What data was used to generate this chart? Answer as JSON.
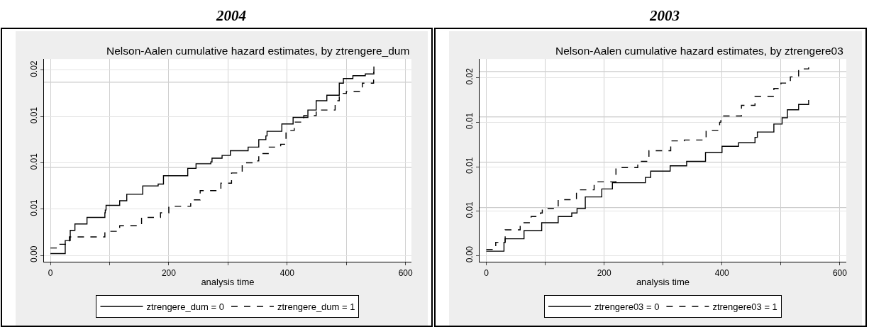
{
  "chart_data": [
    {
      "type": "step",
      "title": "2004",
      "subtitle": "Nelson-Aalen cumulative hazard estimates, by ztrengere_dum",
      "xlabel": "analysis time",
      "xlim": [
        -11,
        610
      ],
      "ylim": [
        -0.0007,
        0.0212
      ],
      "xticks": [
        0,
        {
          "value": 100,
          "label": null
        },
        200,
        {
          "value": 300,
          "label": null
        },
        400,
        {
          "value": 500,
          "label": null
        },
        600
      ],
      "yticks": [
        {
          "value": 0,
          "label": "0.00"
        },
        {
          "value": 0.005,
          "label": "0.01"
        },
        {
          "value": 0.01,
          "label": "0.01"
        },
        {
          "value": 0.015,
          "label": "0.01"
        },
        {
          "value": 0.02,
          "label": "0.02"
        }
      ],
      "grid": true,
      "legend": "bottom",
      "ref_lines": [
        {
          "axis": "y",
          "value": 0.0187,
          "label": null,
          "color": "#c0c0c0"
        },
        {
          "axis": "y",
          "value": 0.0095,
          "label": null,
          "color": "#c0c0c0"
        }
      ],
      "series": [
        {
          "name": "ztrengere_dum = 0",
          "color": "#000000",
          "line_style": "solid",
          "x": [
            0,
            25,
            33.5,
            41.4,
            53,
            61.8,
            92,
            92.7,
            94,
            117,
            129,
            146,
            156,
            182,
            191,
            209,
            232,
            246,
            271,
            273,
            290,
            304,
            334,
            352,
            364,
            366,
            387,
            391,
            410,
            435,
            449,
            467,
            488,
            495,
            511,
            532,
            546.5
          ],
          "values": [
            0.0002,
            0.0016,
            0.0027,
            0.0034,
            0.0034,
            0.0041,
            0.0046,
            0.0049,
            0.0054,
            0.0059,
            0.0066,
            0.0066,
            0.0075,
            0.0077,
            0.0086,
            0.0086,
            0.0094,
            0.0099,
            0.0101,
            0.0105,
            0.0108,
            0.0113,
            0.0117,
            0.0125,
            0.0129,
            0.0134,
            0.0134,
            0.0142,
            0.0149,
            0.0157,
            0.0167,
            0.0173,
            0.0186,
            0.0191,
            0.0194,
            0.0196,
            0.0204
          ]
        },
        {
          "name": "ztrengere_dum = 1",
          "color": "#000000",
          "line_style": "dashed",
          "x": [
            0,
            16,
            32,
            62,
            92,
            117,
            154,
            186,
            200,
            237,
            253,
            288,
            306,
            324,
            345,
            352,
            368,
            389,
            398,
            412,
            428,
            449,
            481,
            488,
            500,
            527,
            546
          ],
          "values": [
            0.0008,
            0.0012,
            0.002,
            0.002,
            0.0026,
            0.0032,
            0.0041,
            0.0046,
            0.0053,
            0.006,
            0.007,
            0.0078,
            0.0089,
            0.01,
            0.0102,
            0.011,
            0.0117,
            0.012,
            0.0135,
            0.0144,
            0.0151,
            0.0157,
            0.0167,
            0.0175,
            0.0177,
            0.0186,
            0.0198
          ]
        }
      ]
    },
    {
      "type": "step",
      "title": "2003",
      "subtitle": "Nelson-Aalen cumulative hazard estimates, by ztrengere03",
      "xlabel": "analysis time",
      "xlim": [
        -11.6,
        611
      ],
      "ylim": [
        -0.0007,
        0.0221
      ],
      "xticks": [
        0,
        {
          "value": 100,
          "label": null
        },
        200,
        {
          "value": 300,
          "label": null
        },
        400,
        {
          "value": 500,
          "label": null
        },
        600
      ],
      "yticks": [
        {
          "value": 0,
          "label": "0.00"
        },
        {
          "value": 0.005,
          "label": "0.01"
        },
        {
          "value": 0.01,
          "label": "0.01"
        },
        {
          "value": 0.015,
          "label": "0.01"
        },
        {
          "value": 0.02,
          "label": "0.02"
        }
      ],
      "grid": true,
      "legend": "bottom",
      "ref_lines": [
        {
          "axis": "y",
          "value": 0.0207,
          "label": null,
          "color": "#c0c0c0"
        },
        {
          "axis": "y",
          "value": 0.0156,
          "label": null,
          "color": "#c0c0c0"
        },
        {
          "axis": "y",
          "value": 0.0105,
          "label": null,
          "color": "#c0c0c0"
        },
        {
          "axis": "y",
          "value": 0.0054,
          "label": null,
          "color": "#c0c0c0"
        }
      ],
      "series": [
        {
          "name": "ztrengere03 = 0",
          "color": "#000000",
          "line_style": "solid",
          "x": [
            0,
            30,
            32,
            57.5,
            64,
            94,
            122,
            145,
            154,
            168,
            196,
            214,
            270,
            279,
            312,
            330,
            340,
            372,
            400,
            428,
            456,
            460,
            483,
            488,
            502,
            511,
            530,
            547
          ],
          "values": [
            0.0005,
            0.0015,
            0.0019,
            0.0019,
            0.0028,
            0.0037,
            0.0044,
            0.0048,
            0.0053,
            0.0066,
            0.0075,
            0.0082,
            0.0088,
            0.0095,
            0.0101,
            0.0101,
            0.0106,
            0.0116,
            0.0123,
            0.0127,
            0.0133,
            0.0139,
            0.0139,
            0.0148,
            0.0155,
            0.0164,
            0.017,
            0.0175
          ]
        },
        {
          "name": "ztrengere03 = 1",
          "color": "#000000",
          "line_style": "dashed",
          "x": [
            0,
            16,
            32,
            57.5,
            76,
            92,
            95,
            122,
            153,
            183,
            220,
            257,
            276,
            301,
            313,
            336,
            373,
            396,
            398,
            414,
            433,
            456,
            488,
            500,
            516,
            530,
            547
          ],
          "values": [
            0.0007,
            0.0015,
            0.0029,
            0.0037,
            0.0044,
            0.0048,
            0.0053,
            0.0063,
            0.0074,
            0.0083,
            0.0099,
            0.0106,
            0.0118,
            0.0118,
            0.0129,
            0.013,
            0.0141,
            0.015,
            0.0157,
            0.0157,
            0.0169,
            0.0179,
            0.0188,
            0.0194,
            0.0201,
            0.021,
            0.0214
          ]
        }
      ]
    }
  ]
}
